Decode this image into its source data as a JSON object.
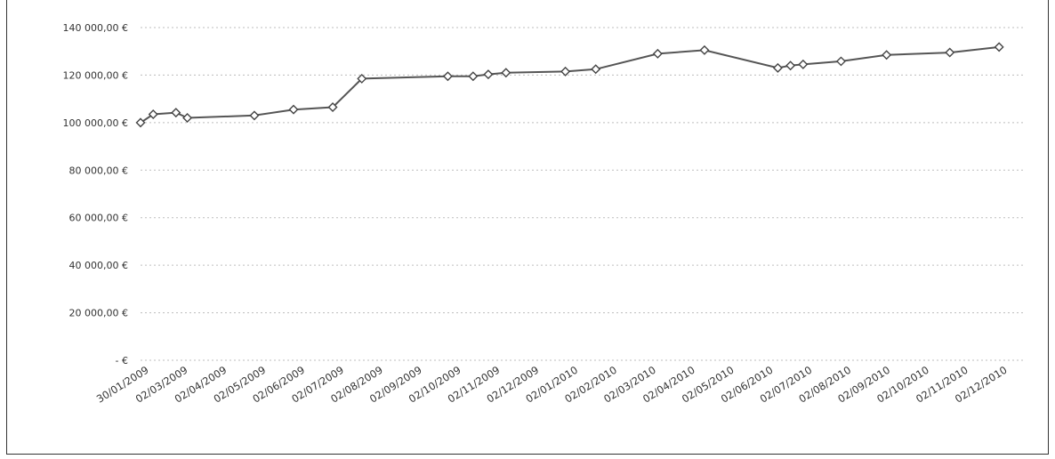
{
  "chart_data": {
    "type": "line",
    "title": "",
    "xlabel": "",
    "ylabel": "",
    "grid": true,
    "ylim": [
      0,
      140000
    ],
    "yticks": [
      {
        "value": 140000,
        "label": "140 000,00 €"
      },
      {
        "value": 120000,
        "label": "120 000,00 €"
      },
      {
        "value": 100000,
        "label": "100 000,00 €"
      },
      {
        "value": 80000,
        "label": "80 000,00 €"
      },
      {
        "value": 60000,
        "label": "60 000,00 €"
      },
      {
        "value": 40000,
        "label": "40 000,00 €"
      },
      {
        "value": 20000,
        "label": "20 000,00 €"
      },
      {
        "value": 0,
        "label": "- €"
      }
    ],
    "xlim": [
      "2009-01-30",
      "2010-12-31"
    ],
    "xticks": [
      "30/01/2009",
      "02/03/2009",
      "02/04/2009",
      "02/05/2009",
      "02/06/2009",
      "02/07/2009",
      "02/08/2009",
      "02/09/2009",
      "02/10/2009",
      "02/11/2009",
      "02/12/2009",
      "02/01/2010",
      "02/02/2010",
      "02/03/2010",
      "02/04/2010",
      "02/05/2010",
      "02/06/2010",
      "02/07/2010",
      "02/08/2010",
      "02/09/2010",
      "02/10/2010",
      "02/11/2010",
      "02/12/2010"
    ],
    "series": [
      {
        "color": "#555555",
        "points": [
          {
            "x": "2009-01-30",
            "y": 100000
          },
          {
            "x": "2009-02-09",
            "y": 103500
          },
          {
            "x": "2009-02-27",
            "y": 104200
          },
          {
            "x": "2009-03-08",
            "y": 102000
          },
          {
            "x": "2009-04-30",
            "y": 103000
          },
          {
            "x": "2009-05-31",
            "y": 105500
          },
          {
            "x": "2009-07-01",
            "y": 106500
          },
          {
            "x": "2009-07-24",
            "y": 118500
          },
          {
            "x": "2009-09-30",
            "y": 119500
          },
          {
            "x": "2009-10-20",
            "y": 119500
          },
          {
            "x": "2009-11-01",
            "y": 120300
          },
          {
            "x": "2009-11-15",
            "y": 121000
          },
          {
            "x": "2010-01-01",
            "y": 121500
          },
          {
            "x": "2010-01-25",
            "y": 122500
          },
          {
            "x": "2010-03-15",
            "y": 129000
          },
          {
            "x": "2010-04-21",
            "y": 130500
          },
          {
            "x": "2010-06-18",
            "y": 123000
          },
          {
            "x": "2010-06-28",
            "y": 124000
          },
          {
            "x": "2010-07-08",
            "y": 124500
          },
          {
            "x": "2010-08-07",
            "y": 125800
          },
          {
            "x": "2010-09-12",
            "y": 128500
          },
          {
            "x": "2010-11-01",
            "y": 129500
          },
          {
            "x": "2010-12-10",
            "y": 131800
          }
        ]
      }
    ]
  }
}
